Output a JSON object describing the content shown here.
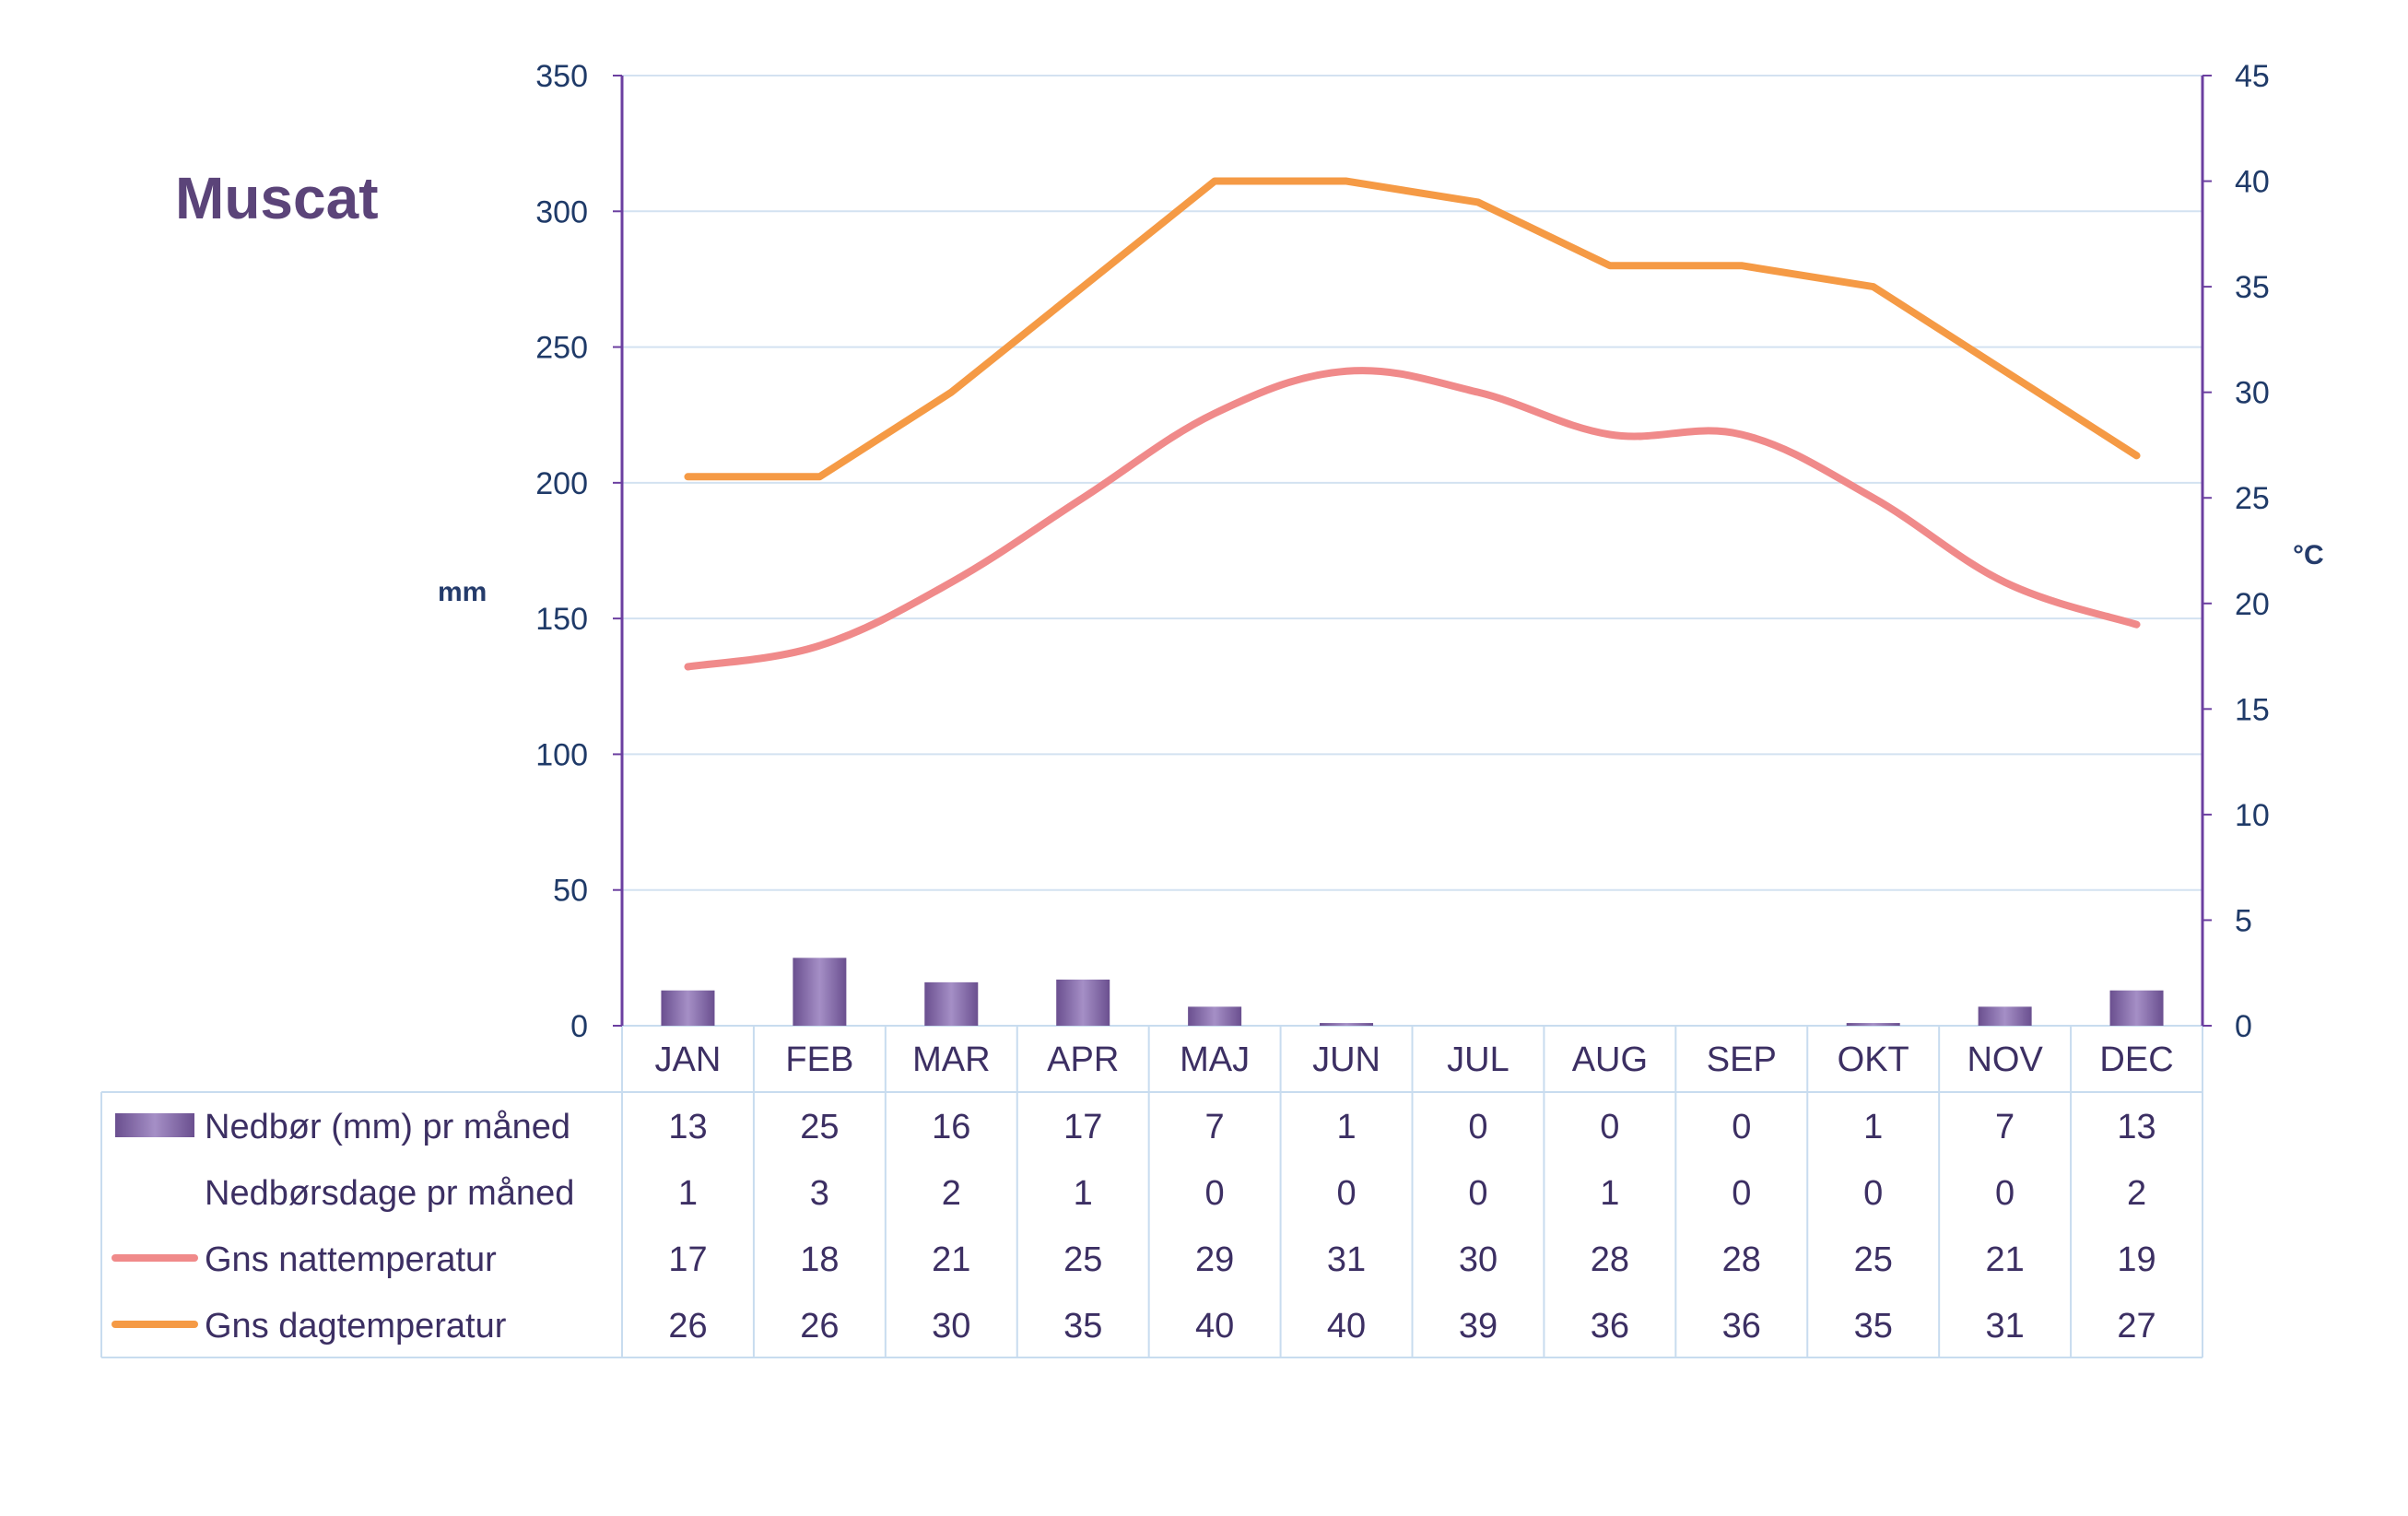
{
  "title": "Muscat",
  "colors": {
    "precip_bar": "#6a4f8f",
    "night_line": "#f08a8a",
    "day_line": "#f59a45",
    "axis_line": "#6b3fa0",
    "grid_line": "#d3e2f1",
    "table_border": "#c8dcef"
  },
  "chart_data": {
    "type": "bar",
    "title": "Muscat",
    "categories": [
      "JAN",
      "FEB",
      "MAR",
      "APR",
      "MAJ",
      "JUN",
      "JUL",
      "AUG",
      "SEP",
      "OKT",
      "NOV",
      "DEC"
    ],
    "y_left": {
      "label": "mm",
      "range": [
        0,
        350
      ],
      "ticks": [
        "0",
        "50",
        "100",
        "150",
        "200",
        "250",
        "300",
        "350"
      ]
    },
    "y_right": {
      "label": "°C",
      "range": [
        0,
        45
      ],
      "ticks": [
        "0",
        "5",
        "10",
        "15",
        "20",
        "25",
        "30",
        "35",
        "40",
        "45"
      ]
    },
    "grid": true,
    "series": [
      {
        "name": "Nedbør (mm) pr måned",
        "type": "bar",
        "axis": "left",
        "values": [
          13,
          25,
          16,
          17,
          7,
          1,
          0,
          0,
          0,
          1,
          7,
          13
        ]
      },
      {
        "name": "Nedbørsdage pr måned",
        "type": "table",
        "values": [
          1,
          3,
          2,
          1,
          0,
          0,
          0,
          1,
          0,
          0,
          0,
          2
        ]
      },
      {
        "name": "Gns nattemperatur",
        "type": "line",
        "axis": "right",
        "values": [
          17,
          18,
          21,
          25,
          29,
          31,
          30,
          28,
          28,
          25,
          21,
          19
        ]
      },
      {
        "name": "Gns dagtemperatur",
        "type": "line",
        "axis": "right",
        "values": [
          26,
          26,
          30,
          35,
          40,
          40,
          39,
          36,
          36,
          35,
          31,
          27
        ]
      }
    ]
  }
}
